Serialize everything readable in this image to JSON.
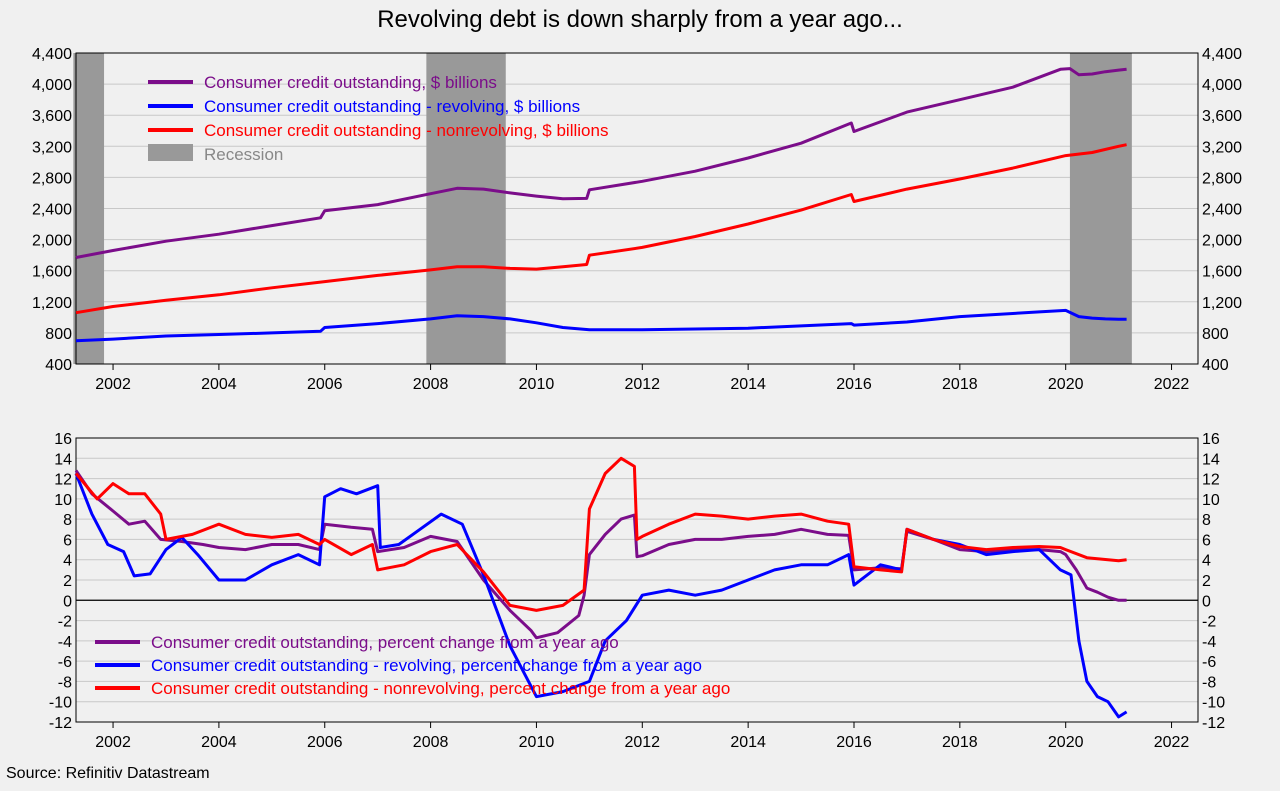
{
  "title": "Revolving debt is down sharply from a year ago...",
  "source": "Source: Refinitiv Datastream",
  "colors": {
    "total": "#7b0d8a",
    "revolving": "#0000ff",
    "nonrevolving": "#ff0000",
    "recession": "#999999",
    "background": "#f0f0f0"
  },
  "chart_data": [
    {
      "type": "line",
      "title": "",
      "xlabel": "",
      "ylabel": "",
      "xlim": [
        2001.3,
        2022.5
      ],
      "ylim": [
        400,
        4400
      ],
      "xticks": [
        2002,
        2004,
        2006,
        2008,
        2010,
        2012,
        2014,
        2016,
        2018,
        2020,
        2022
      ],
      "yticks": [
        400,
        800,
        1200,
        1600,
        2000,
        2400,
        2800,
        3200,
        3600,
        4000,
        4400
      ],
      "ytick_labels": [
        "400",
        "800",
        "1,200",
        "1,600",
        "2,000",
        "2,400",
        "2,800",
        "3,200",
        "3,600",
        "4,000",
        "4,400"
      ],
      "grid": "horizontal",
      "legend_position": "top-left",
      "recessions": [
        [
          2001.25,
          2001.83
        ],
        [
          2007.92,
          2009.42
        ],
        [
          2020.08,
          2021.25
        ]
      ],
      "recession_label": "Recession",
      "series": [
        {
          "key": "total",
          "name": "Consumer credit outstanding, $ billions",
          "x": [
            2001.3,
            2002,
            2003,
            2004,
            2005,
            2005.92,
            2006.0,
            2007,
            2008,
            2008.5,
            2009,
            2009.5,
            2010,
            2010.5,
            2010.95,
            2011.0,
            2012,
            2013,
            2014,
            2015,
            2015.95,
            2016.0,
            2017,
            2018,
            2019,
            2019.9,
            2020.08,
            2020.25,
            2020.5,
            2020.75,
            2021,
            2021.15
          ],
          "values": [
            1770,
            1860,
            1980,
            2070,
            2180,
            2280,
            2370,
            2450,
            2590,
            2660,
            2650,
            2600,
            2560,
            2525,
            2530,
            2640,
            2750,
            2880,
            3050,
            3240,
            3500,
            3390,
            3640,
            3800,
            3960,
            4190,
            4200,
            4120,
            4130,
            4160,
            4180,
            4190
          ]
        },
        {
          "key": "revolving",
          "name": "Consumer credit outstanding - revolving, $ billions",
          "x": [
            2001.3,
            2002,
            2003,
            2004,
            2005,
            2005.92,
            2006.0,
            2007,
            2008,
            2008.5,
            2009,
            2009.5,
            2010,
            2010.5,
            2011,
            2012,
            2013,
            2014,
            2015,
            2015.95,
            2016.0,
            2017,
            2018,
            2019,
            2019.5,
            2020.0,
            2020.25,
            2020.5,
            2020.75,
            2021,
            2021.15
          ],
          "values": [
            700,
            720,
            760,
            780,
            800,
            820,
            870,
            920,
            980,
            1020,
            1010,
            980,
            930,
            870,
            840,
            840,
            850,
            860,
            890,
            920,
            900,
            940,
            1010,
            1050,
            1070,
            1090,
            1010,
            990,
            980,
            975,
            975
          ]
        },
        {
          "key": "nonrevolving",
          "name": "Consumer credit outstanding - nonrevolving, $ billions",
          "x": [
            2001.3,
            2002,
            2003,
            2004,
            2005,
            2006,
            2007,
            2008,
            2008.5,
            2009,
            2009.5,
            2010,
            2010.5,
            2010.95,
            2011.0,
            2012,
            2013,
            2014,
            2015,
            2015.95,
            2016.0,
            2017,
            2018,
            2019,
            2020,
            2020.5,
            2021,
            2021.15
          ],
          "values": [
            1060,
            1140,
            1220,
            1290,
            1380,
            1460,
            1540,
            1610,
            1650,
            1650,
            1630,
            1620,
            1650,
            1680,
            1800,
            1900,
            2040,
            2200,
            2380,
            2580,
            2490,
            2650,
            2780,
            2920,
            3080,
            3120,
            3200,
            3220
          ]
        }
      ]
    },
    {
      "type": "line",
      "title": "",
      "xlabel": "",
      "ylabel": "",
      "xlim": [
        2001.3,
        2022.5
      ],
      "ylim": [
        -12,
        16
      ],
      "xticks": [
        2002,
        2004,
        2006,
        2008,
        2010,
        2012,
        2014,
        2016,
        2018,
        2020,
        2022
      ],
      "yticks": [
        -12,
        -10,
        -8,
        -6,
        -4,
        -2,
        0,
        2,
        4,
        6,
        8,
        10,
        12,
        14,
        16
      ],
      "grid": "horizontal",
      "legend_position": "bottom-left",
      "series": [
        {
          "key": "total",
          "name": "Consumer credit outstanding, percent change from a year ago",
          "x": [
            2001.3,
            2001.6,
            2002.0,
            2002.3,
            2002.6,
            2002.9,
            2003.3,
            2003.7,
            2004.0,
            2004.5,
            2005.0,
            2005.5,
            2005.9,
            2006.0,
            2006.5,
            2006.9,
            2007.0,
            2007.5,
            2008.0,
            2008.5,
            2009.0,
            2009.5,
            2009.9,
            2010.0,
            2010.4,
            2010.8,
            2010.9,
            2011.0,
            2011.3,
            2011.6,
            2011.85,
            2011.9,
            2012.0,
            2012.5,
            2013.0,
            2013.5,
            2014.0,
            2014.5,
            2015.0,
            2015.5,
            2015.9,
            2016.0,
            2016.5,
            2016.9,
            2017.0,
            2017.5,
            2018.0,
            2018.5,
            2019.0,
            2019.5,
            2019.9,
            2020.0,
            2020.2,
            2020.4,
            2020.6,
            2020.8,
            2021.0,
            2021.15
          ],
          "values": [
            12.8,
            10.5,
            8.8,
            7.5,
            7.8,
            6.0,
            5.8,
            5.5,
            5.2,
            5.0,
            5.5,
            5.5,
            5.0,
            7.5,
            7.2,
            7.0,
            4.8,
            5.2,
            6.3,
            5.8,
            2.0,
            -1.0,
            -3.0,
            -3.7,
            -3.2,
            -1.5,
            0.5,
            4.5,
            6.5,
            8.0,
            8.4,
            4.3,
            4.4,
            5.5,
            6.0,
            6.0,
            6.3,
            6.5,
            7.0,
            6.5,
            6.4,
            3.0,
            3.2,
            3.1,
            6.8,
            6.0,
            5.0,
            4.8,
            5.0,
            5.0,
            4.8,
            4.5,
            3.0,
            1.2,
            0.8,
            0.3,
            0.0,
            0.0
          ]
        },
        {
          "key": "revolving",
          "name": "Consumer credit outstanding - revolving, percent change from a year ago",
          "x": [
            2001.3,
            2001.6,
            2001.9,
            2002.2,
            2002.4,
            2002.7,
            2003.0,
            2003.3,
            2003.6,
            2004.0,
            2004.5,
            2005.0,
            2005.5,
            2005.9,
            2006.0,
            2006.3,
            2006.6,
            2007.0,
            2007.05,
            2007.4,
            2007.8,
            2008.2,
            2008.6,
            2009.0,
            2009.5,
            2010.0,
            2010.5,
            2011.0,
            2011.3,
            2011.7,
            2012.0,
            2012.5,
            2013.0,
            2013.5,
            2014.0,
            2014.5,
            2015.0,
            2015.5,
            2015.9,
            2016.0,
            2016.5,
            2016.9,
            2017.0,
            2017.5,
            2018.0,
            2018.5,
            2019.0,
            2019.5,
            2019.9,
            2020.1,
            2020.25,
            2020.4,
            2020.6,
            2020.8,
            2021.0,
            2021.15
          ],
          "values": [
            12.5,
            8.5,
            5.5,
            4.8,
            2.4,
            2.6,
            5.0,
            6.2,
            4.5,
            2.0,
            2.0,
            3.5,
            4.5,
            3.5,
            10.2,
            11.0,
            10.5,
            11.3,
            5.2,
            5.5,
            7.0,
            8.5,
            7.5,
            2.5,
            -4.5,
            -9.5,
            -9.0,
            -8.0,
            -4.0,
            -2.0,
            0.5,
            1.0,
            0.5,
            1.0,
            2.0,
            3.0,
            3.5,
            3.5,
            4.5,
            1.5,
            3.5,
            3.0,
            7.0,
            6.0,
            5.5,
            4.5,
            4.8,
            5.0,
            3.0,
            2.5,
            -4.0,
            -8.0,
            -9.5,
            -10.0,
            -11.5,
            -11.0
          ]
        },
        {
          "key": "nonrevolving",
          "name": "Consumer credit outstanding - nonrevolving, percent change from a year ago",
          "x": [
            2001.3,
            2001.7,
            2002.0,
            2002.3,
            2002.6,
            2002.9,
            2003.0,
            2003.5,
            2004.0,
            2004.5,
            2005.0,
            2005.5,
            2005.9,
            2006.0,
            2006.5,
            2006.9,
            2007.0,
            2007.5,
            2008.0,
            2008.5,
            2009.0,
            2009.5,
            2010.0,
            2010.5,
            2010.9,
            2011.0,
            2011.3,
            2011.6,
            2011.85,
            2011.9,
            2012.0,
            2012.5,
            2013.0,
            2013.5,
            2014.0,
            2014.5,
            2015.0,
            2015.5,
            2015.9,
            2016.0,
            2016.5,
            2016.9,
            2017.0,
            2017.5,
            2018.0,
            2018.5,
            2019.0,
            2019.5,
            2019.9,
            2020.0,
            2020.4,
            2020.8,
            2021.0,
            2021.15
          ],
          "values": [
            12.5,
            10.0,
            11.5,
            10.5,
            10.5,
            8.5,
            6.0,
            6.5,
            7.5,
            6.5,
            6.2,
            6.5,
            5.5,
            6.0,
            4.5,
            5.5,
            3.0,
            3.5,
            4.8,
            5.5,
            2.8,
            -0.5,
            -1.0,
            -0.5,
            1.0,
            9.0,
            12.5,
            14.0,
            13.2,
            6.0,
            6.3,
            7.5,
            8.5,
            8.3,
            8.0,
            8.3,
            8.5,
            7.8,
            7.5,
            3.3,
            3.0,
            2.8,
            7.0,
            6.0,
            5.3,
            5.0,
            5.2,
            5.3,
            5.2,
            5.0,
            4.2,
            4.0,
            3.9,
            4.0
          ]
        }
      ]
    }
  ]
}
